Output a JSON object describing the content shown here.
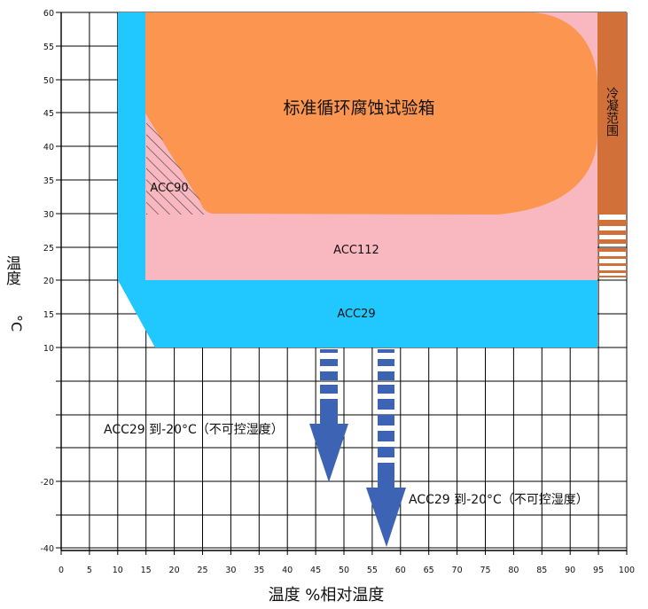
{
  "chart": {
    "type": "diagram",
    "title": "标准循环腐蚀试验箱",
    "xlabel": "温度 %相对温度",
    "ylabel_main": "温度",
    "ylabel_unit": "°C",
    "x_ticks": [
      "0",
      "5",
      "10",
      "15",
      "20",
      "25",
      "30",
      "35",
      "40",
      "45",
      "50",
      "55",
      "60",
      "65",
      "70",
      "75",
      "80",
      "85",
      "90",
      "95",
      "100"
    ],
    "y_ticks": [
      {
        "label": "60",
        "value": 60
      },
      {
        "label": "55",
        "value": 55
      },
      {
        "label": "50",
        "value": 50
      },
      {
        "label": "45",
        "value": 45
      },
      {
        "label": "40",
        "value": 40
      },
      {
        "label": "35",
        "value": 35
      },
      {
        "label": "30",
        "value": 30
      },
      {
        "label": "25",
        "value": 25
      },
      {
        "label": "20",
        "value": 20
      },
      {
        "label": "15",
        "value": 15
      },
      {
        "label": "10",
        "value": 10
      },
      {
        "label": "-20",
        "value": -20
      },
      {
        "label": "-40",
        "value": -40
      }
    ],
    "regions": {
      "acc29": "ACC29",
      "acc112": "ACC112",
      "acc90": "ACC90",
      "condensation": "冷凝范围"
    },
    "arrows": {
      "left_label": "ACC29 到-20°C（不可控湿度）",
      "right_label": "ACC29 到-20°C（不可控湿度）"
    },
    "colors": {
      "acc29": "#20c8ff",
      "acc112": "#f9b8c0",
      "standard": "#fb9550",
      "condensation": "#d2703a",
      "arrow": "#3d63b5",
      "grid": "#000000"
    }
  }
}
